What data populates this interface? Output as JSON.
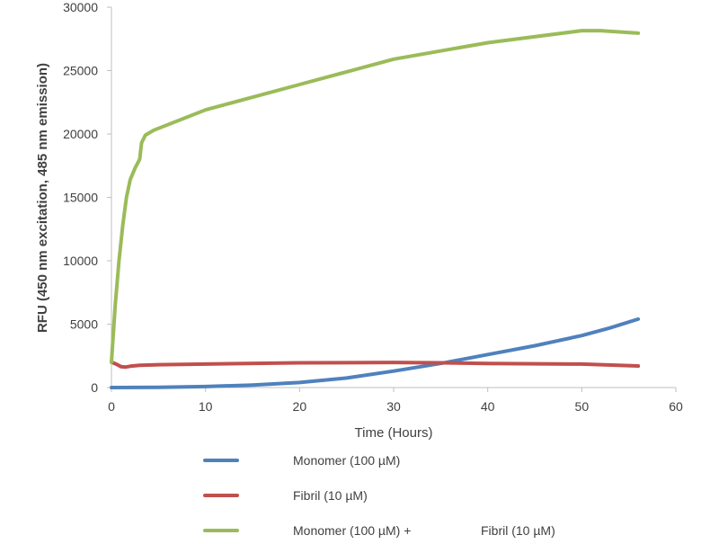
{
  "chart_data": {
    "type": "line",
    "title": "",
    "xlabel": "Time (Hours)",
    "ylabel": "RFU (450 nm excitation, 485 nm emission)",
    "xlim": [
      0,
      60
    ],
    "ylim": [
      0,
      30000
    ],
    "xticks": [
      0,
      10,
      20,
      30,
      40,
      50,
      60
    ],
    "yticks": [
      0,
      5000,
      10000,
      15000,
      20000,
      25000,
      30000
    ],
    "grid": false,
    "legend_position": "bottom",
    "series": [
      {
        "name": "Monomer (100 µM)",
        "color": "#4f81bd",
        "x": [
          0,
          5,
          10,
          15,
          20,
          25,
          30,
          35,
          40,
          45,
          50,
          53,
          56
        ],
        "y": [
          0,
          20,
          80,
          200,
          400,
          750,
          1300,
          1900,
          2600,
          3300,
          4100,
          4700,
          5400
        ]
      },
      {
        "name": "Fibril (10 µM)",
        "color": "#c0504d",
        "x": [
          0,
          0.5,
          1,
          1.5,
          2,
          3,
          5,
          10,
          20,
          30,
          35,
          40,
          50,
          56
        ],
        "y": [
          2000,
          1850,
          1650,
          1620,
          1680,
          1750,
          1800,
          1850,
          1950,
          1980,
          1950,
          1900,
          1850,
          1700
        ]
      },
      {
        "name": "Monomer (100 µM) +",
        "name_suffix": "Fibril (10 µM)",
        "color": "#9bbb59",
        "x": [
          0,
          0.4,
          0.8,
          1.2,
          1.6,
          2.0,
          2.5,
          3.0,
          3.2,
          3.6,
          4.5,
          10,
          20,
          30,
          40,
          50,
          52,
          56
        ],
        "y": [
          2000,
          6500,
          10000,
          12800,
          15000,
          16400,
          17300,
          18000,
          19300,
          19900,
          20300,
          21900,
          23900,
          25900,
          27200,
          28150,
          28150,
          27950
        ]
      }
    ]
  }
}
